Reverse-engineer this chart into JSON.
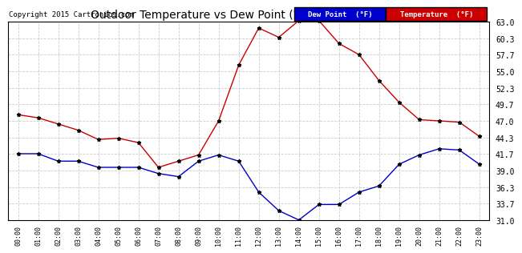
{
  "title": "Outdoor Temperature vs Dew Point (24 Hours) 20151025",
  "copyright": "Copyright 2015 Cartronics.com",
  "background_color": "#ffffff",
  "grid_color": "#cccccc",
  "hours": [
    "00:00",
    "01:00",
    "02:00",
    "03:00",
    "04:00",
    "05:00",
    "06:00",
    "07:00",
    "08:00",
    "09:00",
    "10:00",
    "11:00",
    "12:00",
    "13:00",
    "14:00",
    "15:00",
    "16:00",
    "17:00",
    "18:00",
    "19:00",
    "20:00",
    "21:00",
    "22:00",
    "23:00"
  ],
  "temperature": [
    48.0,
    47.5,
    46.5,
    45.5,
    44.0,
    44.2,
    43.5,
    39.5,
    40.5,
    41.5,
    47.0,
    56.0,
    62.0,
    60.5,
    63.2,
    63.2,
    59.5,
    57.7,
    53.5,
    50.0,
    47.2,
    47.0,
    46.8,
    44.5
  ],
  "dew_point": [
    41.7,
    41.7,
    40.5,
    40.5,
    39.5,
    39.5,
    39.5,
    38.5,
    38.0,
    40.5,
    41.5,
    40.5,
    35.5,
    32.5,
    31.0,
    33.5,
    33.5,
    35.5,
    36.5,
    40.0,
    41.5,
    42.5,
    42.3,
    40.0
  ],
  "temp_color": "#cc0000",
  "dew_color": "#0000cc",
  "marker_color": "#000000",
  "ylim_min": 31.0,
  "ylim_max": 63.0,
  "yticks": [
    31.0,
    33.7,
    36.3,
    39.0,
    41.7,
    44.3,
    47.0,
    49.7,
    52.3,
    55.0,
    57.7,
    60.3,
    63.0
  ],
  "legend_dew_label": "Dew Point  (°F)",
  "legend_temp_label": "Temperature  (°F)"
}
